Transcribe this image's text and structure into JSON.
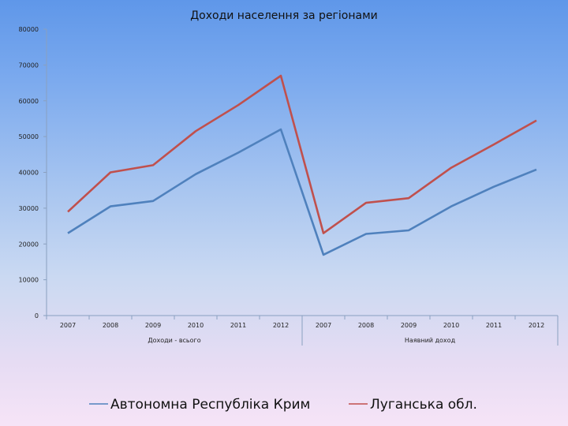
{
  "chart_data": {
    "type": "line",
    "title": "Доходи населення за регіонами",
    "xlabel": "",
    "ylabel": "",
    "ylim": [
      0,
      80000
    ],
    "yticks": [
      0,
      10000,
      20000,
      30000,
      40000,
      50000,
      60000,
      70000,
      80000
    ],
    "categories": [
      "2007",
      "2008",
      "2009",
      "2010",
      "2011",
      "2012",
      "2007",
      "2008",
      "2009",
      "2010",
      "2011",
      "2012"
    ],
    "groups": [
      {
        "label": "Доходи - всього",
        "count": 6
      },
      {
        "label": "Наявний доход",
        "count": 6
      }
    ],
    "series": [
      {
        "name": "Автономна Республіка Крим",
        "color": "#4f81bd",
        "values": [
          23000,
          30500,
          32000,
          39500,
          45500,
          52000,
          17000,
          22800,
          23800,
          30500,
          36000,
          40800
        ]
      },
      {
        "name": "Луганська обл.",
        "color": "#c0504d",
        "values": [
          29000,
          40000,
          42000,
          51500,
          58800,
          67000,
          23000,
          31500,
          32800,
          41300,
          47800,
          54500
        ]
      }
    ],
    "grid": false,
    "legend": "bottom"
  }
}
